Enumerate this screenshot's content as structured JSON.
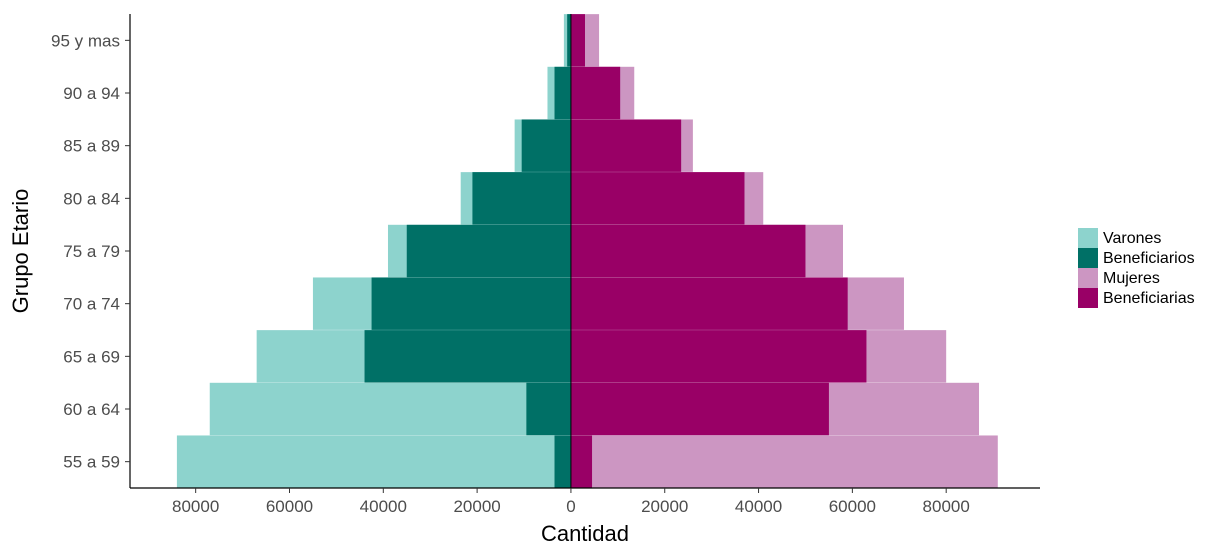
{
  "chart_data": {
    "type": "bar",
    "orientation": "horizontal",
    "chart_style": "population-pyramid",
    "categories": [
      "55 a 59",
      "60 a 64",
      "65 a 69",
      "70 a 74",
      "75 a 79",
      "80 a 84",
      "85 a 89",
      "90 a 94",
      "95 y mas"
    ],
    "series": [
      {
        "name": "Varones",
        "side": "left",
        "color": "#8dd3cd",
        "values": [
          84000,
          77000,
          67000,
          55000,
          39000,
          23500,
          12000,
          5000,
          1500
        ]
      },
      {
        "name": "Beneficiarios",
        "side": "left",
        "color": "#007066",
        "values": [
          3500,
          9500,
          44000,
          42500,
          35000,
          21000,
          10500,
          3500,
          800
        ]
      },
      {
        "name": "Mujeres",
        "side": "right",
        "color": "#cc96c2",
        "values": [
          91000,
          87000,
          80000,
          71000,
          58000,
          41000,
          26000,
          13500,
          6000
        ]
      },
      {
        "name": "Beneficiarias",
        "side": "right",
        "color": "#990066",
        "values": [
          4500,
          55000,
          63000,
          59000,
          50000,
          37000,
          23500,
          10500,
          3000
        ]
      }
    ],
    "xlabel": "Cantidad",
    "ylabel": "Grupo Etario",
    "xlim": [
      -94000,
      100000
    ],
    "xticks": [
      -80000,
      -60000,
      -40000,
      -20000,
      0,
      20000,
      40000,
      60000,
      80000
    ],
    "xtick_labels": [
      "80000",
      "60000",
      "40000",
      "20000",
      "0",
      "20000",
      "40000",
      "60000",
      "80000"
    ],
    "grid": false,
    "legend_position": "right",
    "legend": [
      "Varones",
      "Beneficiarios",
      "Mujeres",
      "Beneficiarias"
    ]
  }
}
